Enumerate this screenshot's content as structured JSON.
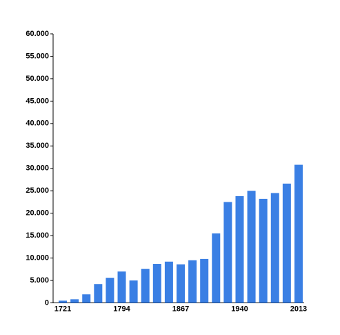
{
  "chart_data": {
    "type": "bar",
    "categories": [
      "1721",
      null,
      null,
      null,
      null,
      "1794",
      null,
      null,
      null,
      null,
      "1867",
      null,
      null,
      null,
      null,
      "1940",
      null,
      null,
      null,
      null,
      "2013"
    ],
    "values": [
      500,
      800,
      1900,
      4200,
      5600,
      7000,
      5000,
      7600,
      8700,
      9200,
      8600,
      9500,
      9800,
      15500,
      22500,
      23800,
      25000,
      23200,
      24500,
      26600,
      30800
    ],
    "color": "#3a7fe4",
    "ylim": [
      0,
      60000
    ],
    "yticks": [
      0,
      {
        "value": 5000,
        "label": "5.000"
      },
      {
        "value": 10000,
        "label": "10.000"
      },
      {
        "value": 15000,
        "label": "15.000"
      },
      {
        "value": 20000,
        "label": "20.000"
      },
      {
        "value": 25000,
        "label": "25.000"
      },
      {
        "value": 30000,
        "label": "30.000"
      },
      {
        "value": 35000,
        "label": "35.000"
      },
      {
        "value": 40000,
        "label": "40.000"
      },
      {
        "value": 45000,
        "label": "45.000"
      },
      {
        "value": 50000,
        "label": "50.000"
      },
      {
        "value": 55000,
        "label": "55.000"
      },
      {
        "value": 60000,
        "label": "60.000"
      }
    ],
    "grid": false
  }
}
